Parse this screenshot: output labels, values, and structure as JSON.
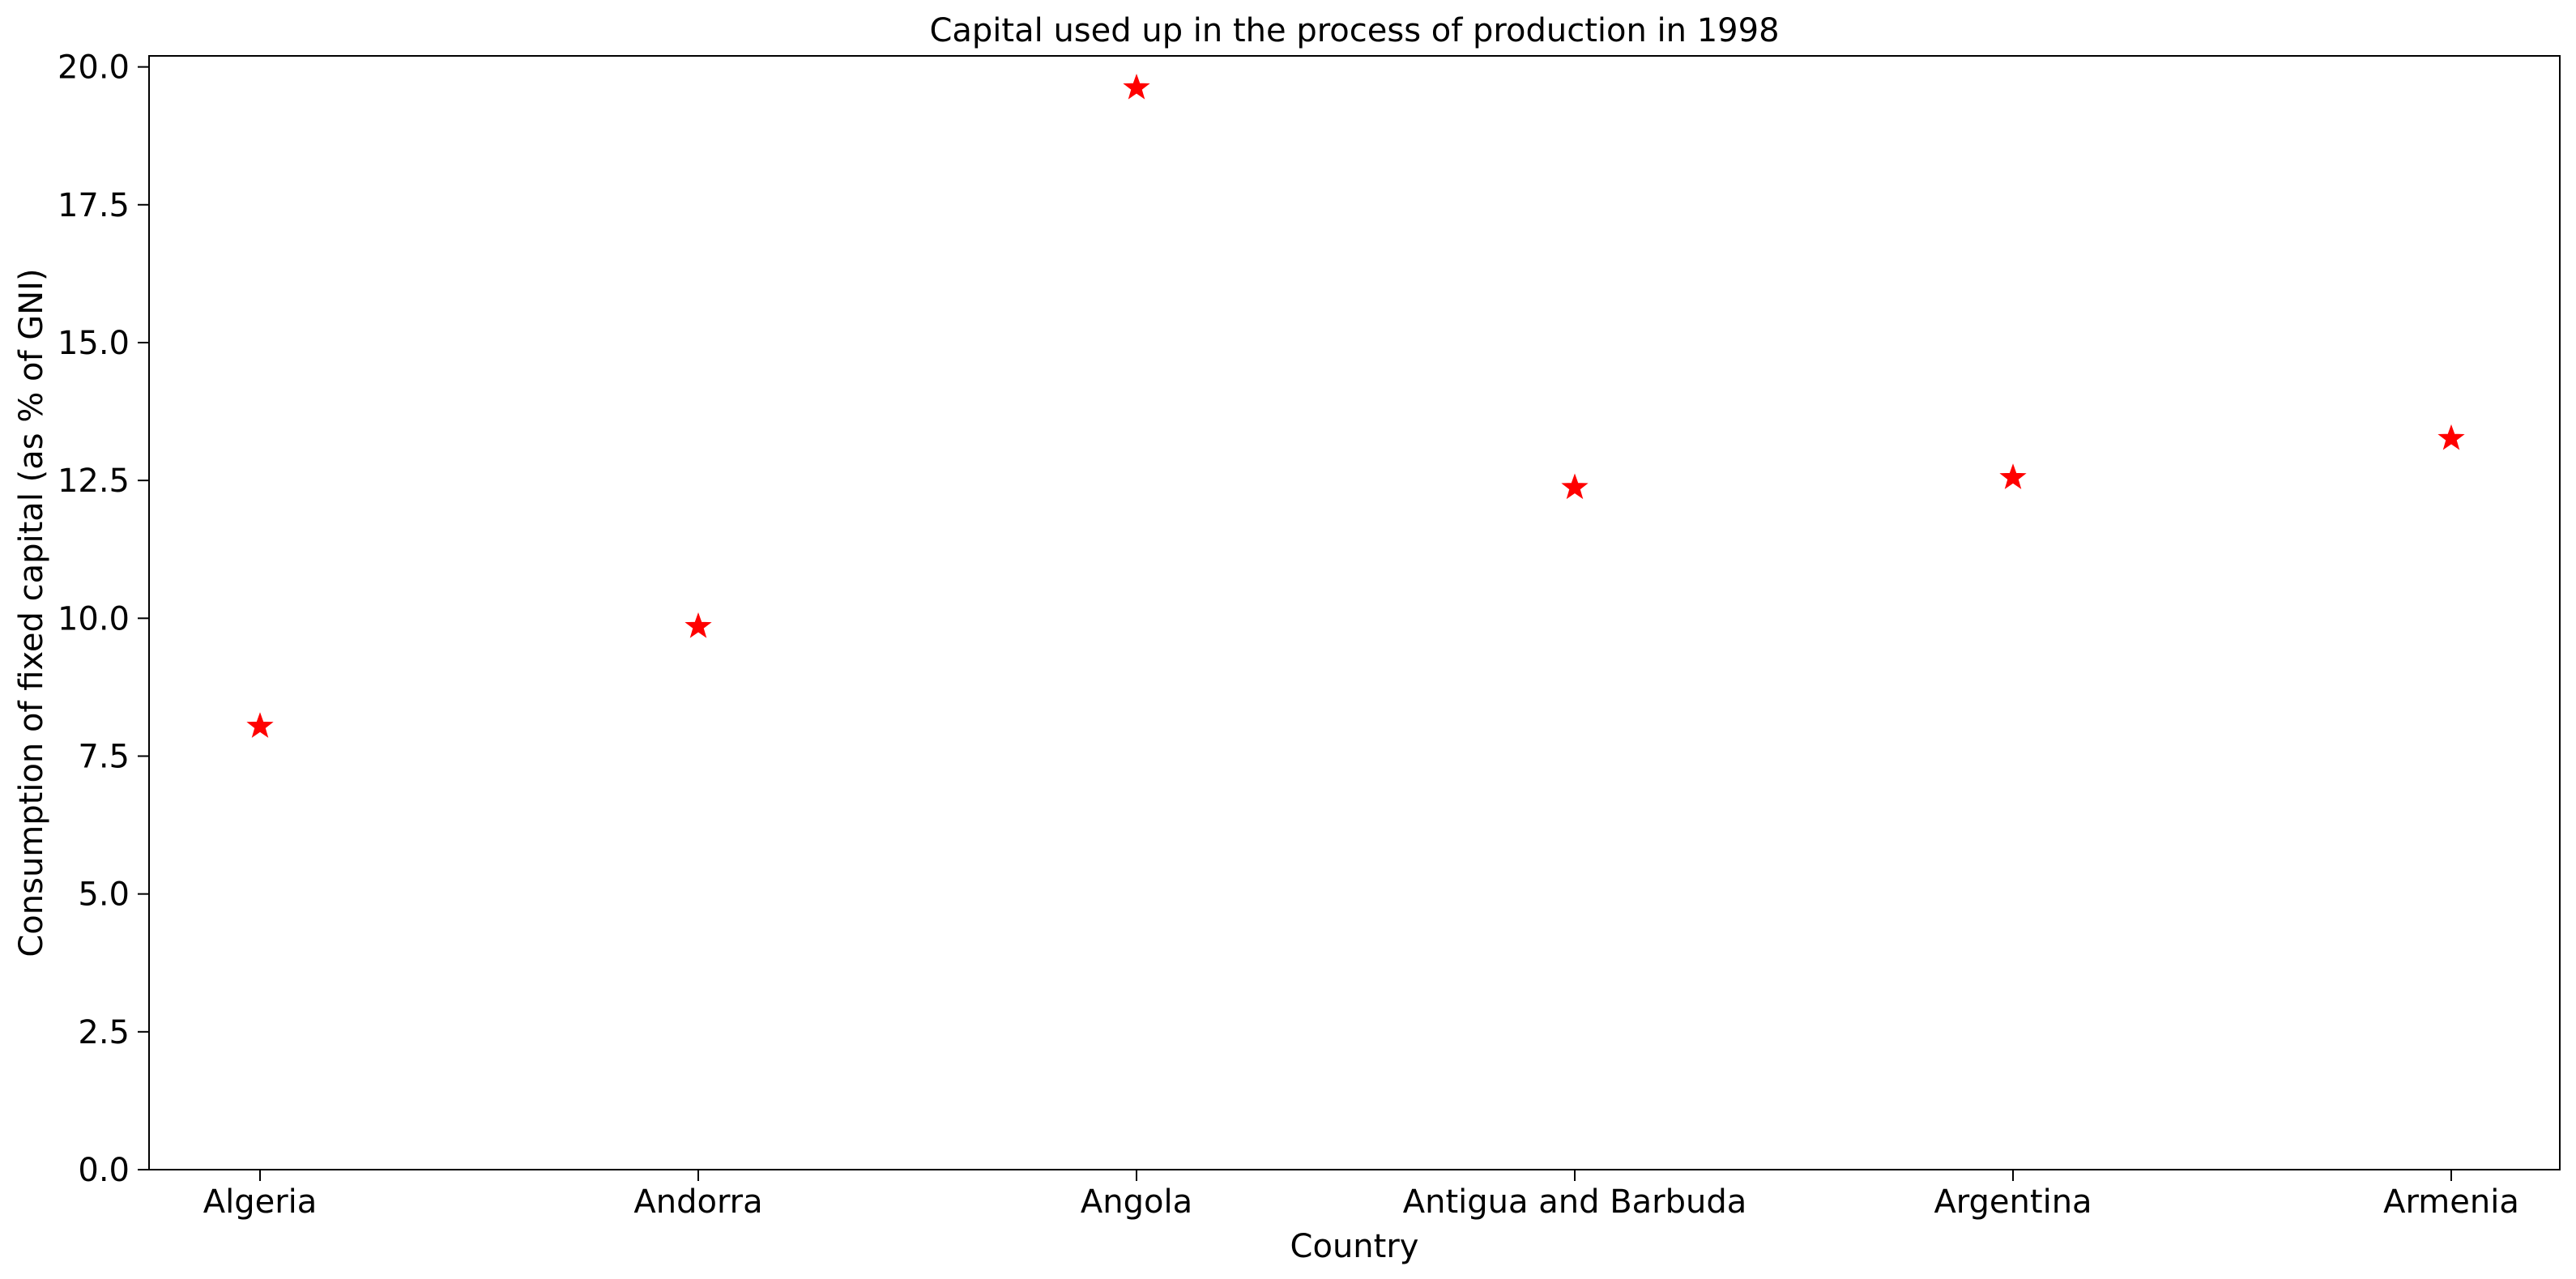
{
  "chart_data": {
    "type": "scatter",
    "title": "Capital used up in the process of production in 1998",
    "xlabel": "Country",
    "ylabel": "Consumption of fixed capital (as % of GNI)",
    "categories": [
      "Algeria",
      "Andorra",
      "Angola",
      "Antigua and Barbuda",
      "Argentina",
      "Armenia"
    ],
    "values": [
      8.07,
      9.88,
      19.65,
      12.4,
      12.58,
      13.29
    ],
    "ylim": [
      0,
      20.2
    ],
    "yticks": [
      0.0,
      2.5,
      5.0,
      7.5,
      10.0,
      12.5,
      15.0,
      17.5,
      20.0
    ],
    "ytick_labels": [
      "0.0",
      "2.5",
      "5.0",
      "7.5",
      "10.0",
      "12.5",
      "15.0",
      "17.5",
      "20.0"
    ],
    "marker": "star",
    "marker_color": "#ff0000",
    "grid": false,
    "legend": "none"
  }
}
